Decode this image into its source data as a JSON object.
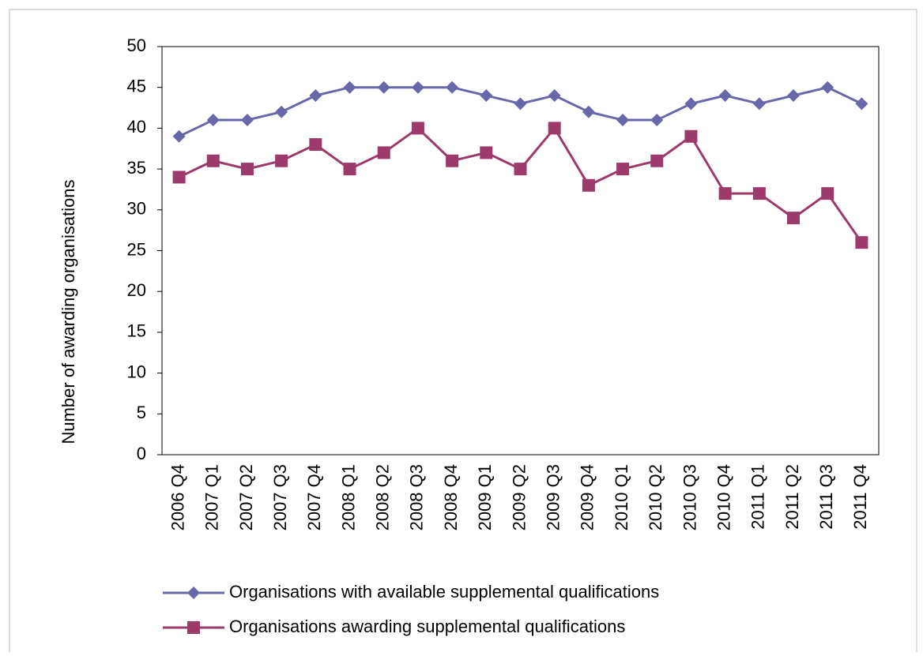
{
  "chart_data": {
    "type": "line",
    "y_label": "Number of awarding organisations",
    "categories": [
      "2006 Q4",
      "2007 Q1",
      "2007 Q2",
      "2007 Q3",
      "2007 Q4",
      "2008 Q1",
      "2008 Q2",
      "2008 Q3",
      "2008 Q4",
      "2009 Q1",
      "2009 Q2",
      "2009 Q3",
      "2009 Q4",
      "2010 Q1",
      "2010 Q2",
      "2010 Q3",
      "2010 Q4",
      "2011 Q1",
      "2011 Q2",
      "2011 Q3",
      "2011 Q4"
    ],
    "series": [
      {
        "name": "Organisations with available supplemental qualifications",
        "color": "#6767a9",
        "marker": "diamond",
        "values": [
          39,
          41,
          41,
          42,
          44,
          45,
          45,
          45,
          45,
          44,
          43,
          44,
          42,
          41,
          41,
          43,
          44,
          43,
          44,
          45,
          43
        ]
      },
      {
        "name": "Organisations awarding supplemental qualifications",
        "color": "#9c3a6c",
        "marker": "square",
        "values": [
          34,
          36,
          35,
          36,
          38,
          35,
          37,
          40,
          36,
          37,
          35,
          40,
          33,
          35,
          36,
          39,
          32,
          32,
          29,
          32,
          26
        ]
      }
    ],
    "ylim": [
      0,
      50
    ],
    "yticks": [
      0,
      5,
      10,
      15,
      20,
      25,
      30,
      35,
      40,
      45,
      50
    ],
    "grid": false,
    "legend": "bottom"
  }
}
